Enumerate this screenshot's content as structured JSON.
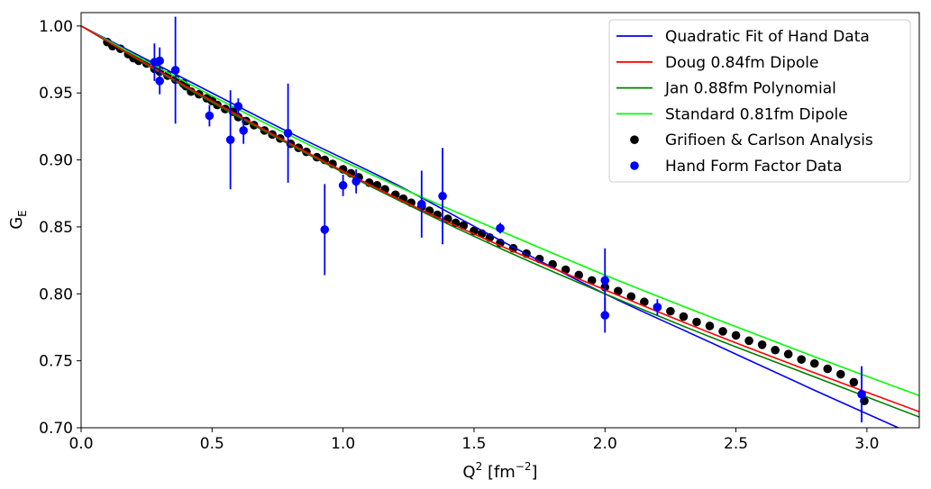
{
  "chart_data": {
    "type": "scatter",
    "xlabel": "Q",
    "xlabel_sup": "2",
    "xlabel_unit_pre": " [fm",
    "xlabel_unit_sup": "−2",
    "xlabel_unit_post": "]",
    "ylabel": "G",
    "ylabel_sub": "E",
    "xlim": [
      0.0,
      3.2
    ],
    "ylim": [
      0.7,
      1.01
    ],
    "xticks": [
      0.0,
      0.5,
      1.0,
      1.5,
      2.0,
      2.5,
      3.0
    ],
    "xtick_labels": [
      "0.0",
      "0.5",
      "1.0",
      "1.5",
      "2.0",
      "2.5",
      "3.0"
    ],
    "yticks": [
      0.7,
      0.75,
      0.8,
      0.85,
      0.9,
      0.95,
      1.0
    ],
    "ytick_labels": [
      "0.70",
      "0.75",
      "0.80",
      "0.85",
      "0.90",
      "0.95",
      "1.00"
    ],
    "grid": false,
    "legend_position": "top-right",
    "series": [
      {
        "name": "Quadratic Fit of Hand Data",
        "type": "line",
        "color": "#0000ff",
        "x": [
          0.0,
          0.4,
          0.8,
          1.2,
          1.6,
          2.0,
          2.4,
          2.8,
          3.2
        ],
        "y": [
          1.0,
          0.96,
          0.92,
          0.882,
          0.84,
          0.8,
          0.764,
          0.728,
          0.693
        ]
      },
      {
        "name": "Doug 0.84fm Dipole",
        "type": "line",
        "color": "#ff0000",
        "x": [
          0.0,
          0.4,
          0.8,
          1.2,
          1.6,
          2.0,
          2.4,
          2.8,
          3.2
        ],
        "y": [
          1.0,
          0.955,
          0.912,
          0.872,
          0.836,
          0.803,
          0.771,
          0.741,
          0.712
        ]
      },
      {
        "name": "Jan 0.88fm Polynomial",
        "type": "line",
        "color": "#008000",
        "x": [
          0.0,
          0.4,
          0.8,
          1.2,
          1.6,
          2.0,
          2.4,
          2.8,
          3.2
        ],
        "y": [
          1.0,
          0.954,
          0.911,
          0.871,
          0.834,
          0.8,
          0.768,
          0.738,
          0.708
        ]
      },
      {
        "name": "Standard 0.81fm Dipole",
        "type": "line",
        "color": "#00ff00",
        "x": [
          0.0,
          0.4,
          0.8,
          1.2,
          1.6,
          2.0,
          2.4,
          2.8,
          3.2
        ],
        "y": [
          1.0,
          0.958,
          0.918,
          0.881,
          0.847,
          0.814,
          0.783,
          0.753,
          0.724
        ]
      },
      {
        "name": "Grifioen & Carlson Analysis",
        "type": "scatter",
        "color": "#000000",
        "x": [
          0.1,
          0.12,
          0.15,
          0.18,
          0.2,
          0.22,
          0.25,
          0.28,
          0.3,
          0.33,
          0.36,
          0.39,
          0.4,
          0.42,
          0.45,
          0.48,
          0.5,
          0.52,
          0.55,
          0.58,
          0.6,
          0.63,
          0.66,
          0.7,
          0.73,
          0.76,
          0.8,
          0.83,
          0.86,
          0.9,
          0.93,
          0.96,
          1.0,
          1.03,
          1.06,
          1.1,
          1.13,
          1.16,
          1.2,
          1.23,
          1.26,
          1.3,
          1.33,
          1.36,
          1.4,
          1.43,
          1.46,
          1.5,
          1.53,
          1.56,
          1.6,
          1.65,
          1.7,
          1.75,
          1.8,
          1.85,
          1.9,
          1.95,
          2.0,
          2.05,
          2.1,
          2.15,
          2.2,
          2.25,
          2.3,
          2.35,
          2.4,
          2.45,
          2.5,
          2.55,
          2.6,
          2.65,
          2.7,
          2.75,
          2.8,
          2.85,
          2.9,
          2.95,
          2.99
        ],
        "y": [
          0.988,
          0.985,
          0.983,
          0.979,
          0.976,
          0.974,
          0.972,
          0.968,
          0.966,
          0.963,
          0.96,
          0.957,
          0.955,
          0.951,
          0.949,
          0.946,
          0.944,
          0.941,
          0.938,
          0.936,
          0.932,
          0.929,
          0.926,
          0.922,
          0.919,
          0.916,
          0.912,
          0.909,
          0.906,
          0.902,
          0.9,
          0.897,
          0.893,
          0.89,
          0.887,
          0.883,
          0.881,
          0.878,
          0.874,
          0.871,
          0.868,
          0.865,
          0.862,
          0.859,
          0.856,
          0.853,
          0.851,
          0.847,
          0.845,
          0.842,
          0.838,
          0.834,
          0.83,
          0.826,
          0.822,
          0.818,
          0.814,
          0.81,
          0.805,
          0.802,
          0.798,
          0.794,
          0.79,
          0.787,
          0.783,
          0.779,
          0.776,
          0.772,
          0.769,
          0.765,
          0.762,
          0.758,
          0.755,
          0.751,
          0.748,
          0.744,
          0.74,
          0.734,
          0.72
        ]
      },
      {
        "name": "Hand Form Factor Data",
        "type": "errorbar",
        "color": "#0000ff",
        "x": [
          0.28,
          0.3,
          0.3,
          0.36,
          0.49,
          0.57,
          0.6,
          0.62,
          0.79,
          0.93,
          1.0,
          1.05,
          1.3,
          1.38,
          1.6,
          2.0,
          2.0,
          2.2,
          2.98
        ],
        "y": [
          0.973,
          0.974,
          0.959,
          0.967,
          0.933,
          0.915,
          0.94,
          0.922,
          0.92,
          0.848,
          0.881,
          0.884,
          0.867,
          0.873,
          0.849,
          0.81,
          0.784,
          0.79,
          0.725
        ],
        "err": [
          0.014,
          0.01,
          0.01,
          0.04,
          0.008,
          0.037,
          0.006,
          0.01,
          0.037,
          0.034,
          0.008,
          0.009,
          0.025,
          0.036,
          0.004,
          0.024,
          0.013,
          0.006,
          0.021
        ]
      }
    ]
  }
}
